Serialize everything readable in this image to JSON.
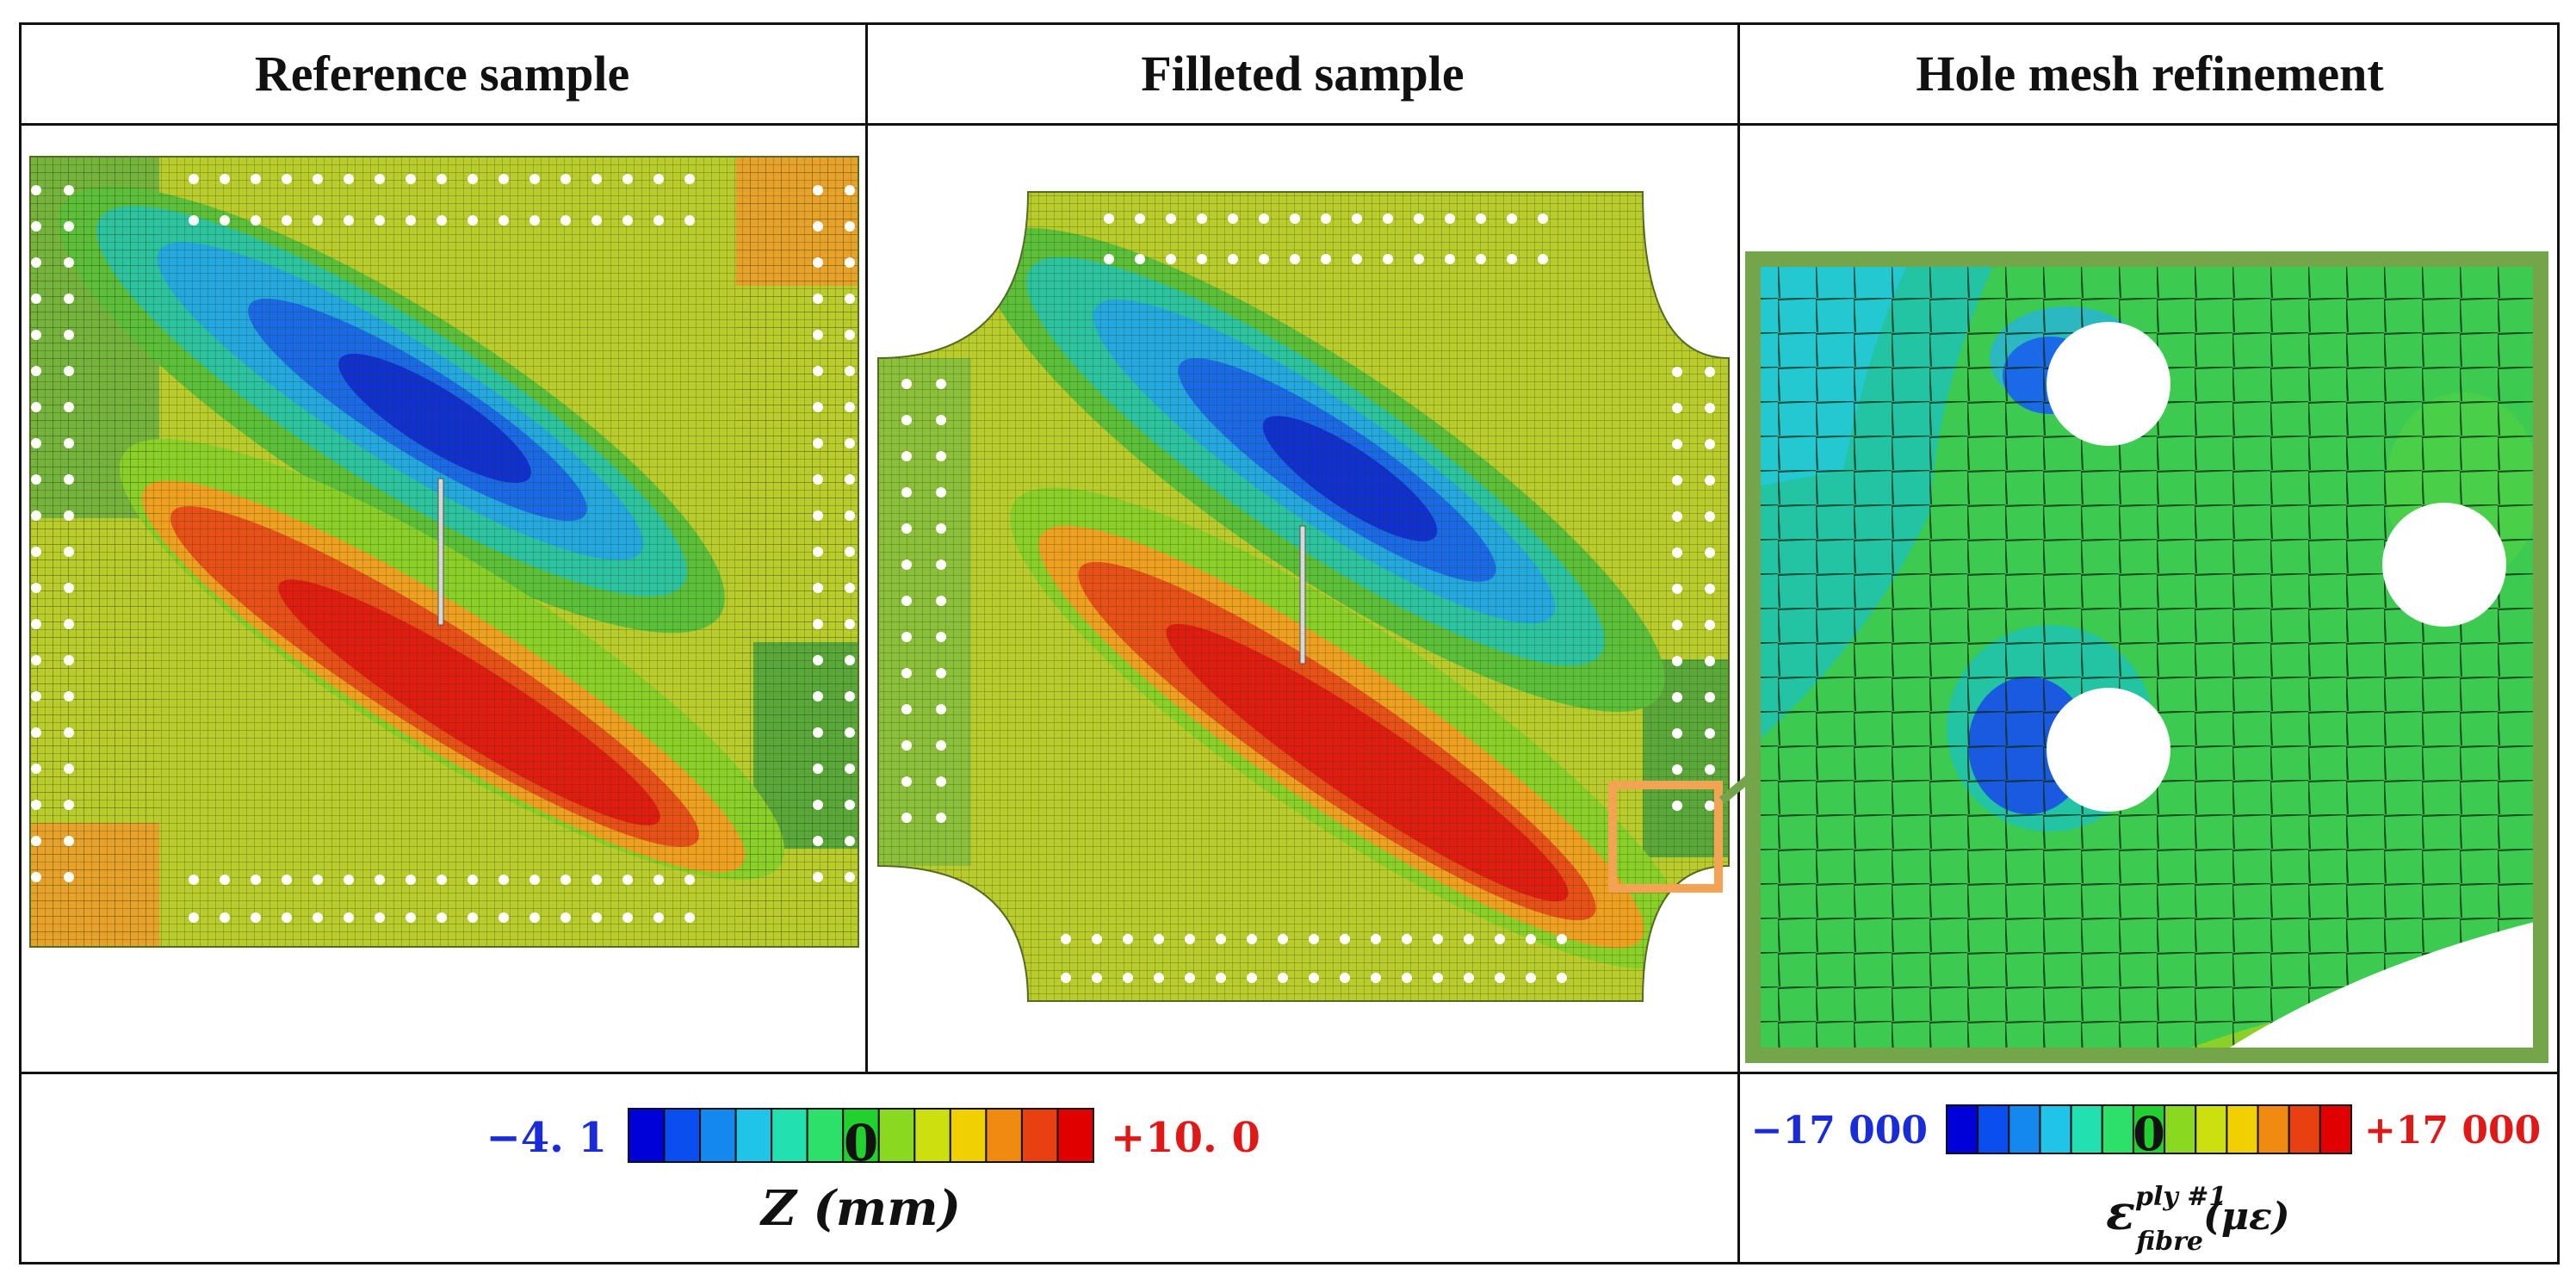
{
  "headers": {
    "reference": "Reference sample",
    "filleted": "Filleted sample",
    "hole_mesh": "Hole mesh refinement"
  },
  "legend_z": {
    "min_label": "−4. 1",
    "zero_label": "0",
    "max_label": "+10. 0",
    "min_value": -4.1,
    "max_value": 10.0,
    "axis_label": "Z (mm)",
    "colors": [
      "#0000d8",
      "#0a4ef0",
      "#1588f0",
      "#20c4e8",
      "#22e0b0",
      "#2de06a",
      "#22d030",
      "#8ad820",
      "#cce010",
      "#f0d000",
      "#f08a10",
      "#e84010",
      "#e00000"
    ]
  },
  "legend_strain": {
    "min_label": "−17 000",
    "zero_label": "0",
    "max_label": "+17 000",
    "min_value": -17000,
    "max_value": 17000,
    "axis_label_main": "ε",
    "axis_label_sup": "ply #1",
    "axis_label_sub": "fibre",
    "axis_label_unit": "(με)",
    "colors": [
      "#0000d8",
      "#0a4ef0",
      "#1588f0",
      "#20c4e8",
      "#22e0b0",
      "#2de06a",
      "#22d030",
      "#8ad820",
      "#cce010",
      "#f0d000",
      "#f08a10",
      "#e84010",
      "#e00000"
    ]
  },
  "palette": {
    "plate_base": "#b9cc2c",
    "edge_green": "#6fb63a",
    "highlight_orange": "#f4a253",
    "zoom_frame": "#74a54a",
    "strain_base": "#3ccb50"
  }
}
